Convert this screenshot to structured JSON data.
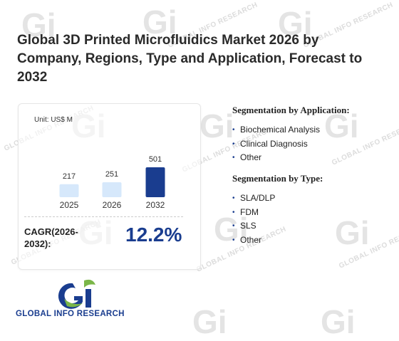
{
  "title": "Global 3D Printed Microfluidics Market 2026 by Company, Regions, Type and Application, Forecast to 2032",
  "chart_data": {
    "type": "bar",
    "unit_label": "Unit: US$ M",
    "categories": [
      "2025",
      "2026",
      "2032"
    ],
    "values": [
      217,
      251,
      501
    ],
    "colors": [
      "#d6e8fb",
      "#d6e8fb",
      "#1a3d8f"
    ]
  },
  "cagr": {
    "label": "CAGR(2026-2032):",
    "value": "12.2%"
  },
  "segmentation_application": {
    "heading": "Segmentation by Application:",
    "items": [
      "Biochemical Analysis",
      "Clinical Diagnosis",
      "Other"
    ]
  },
  "segmentation_type": {
    "heading": "Segmentation by Type:",
    "items": [
      "SLA/DLP",
      "FDM",
      "SLS",
      "Other"
    ]
  },
  "brand": {
    "name": "GLOBAL INFO RESEARCH",
    "watermark": "GLOBAL INFO RESEARCH",
    "primary_color": "#1a3d8f",
    "accent_color": "#7ab648"
  }
}
